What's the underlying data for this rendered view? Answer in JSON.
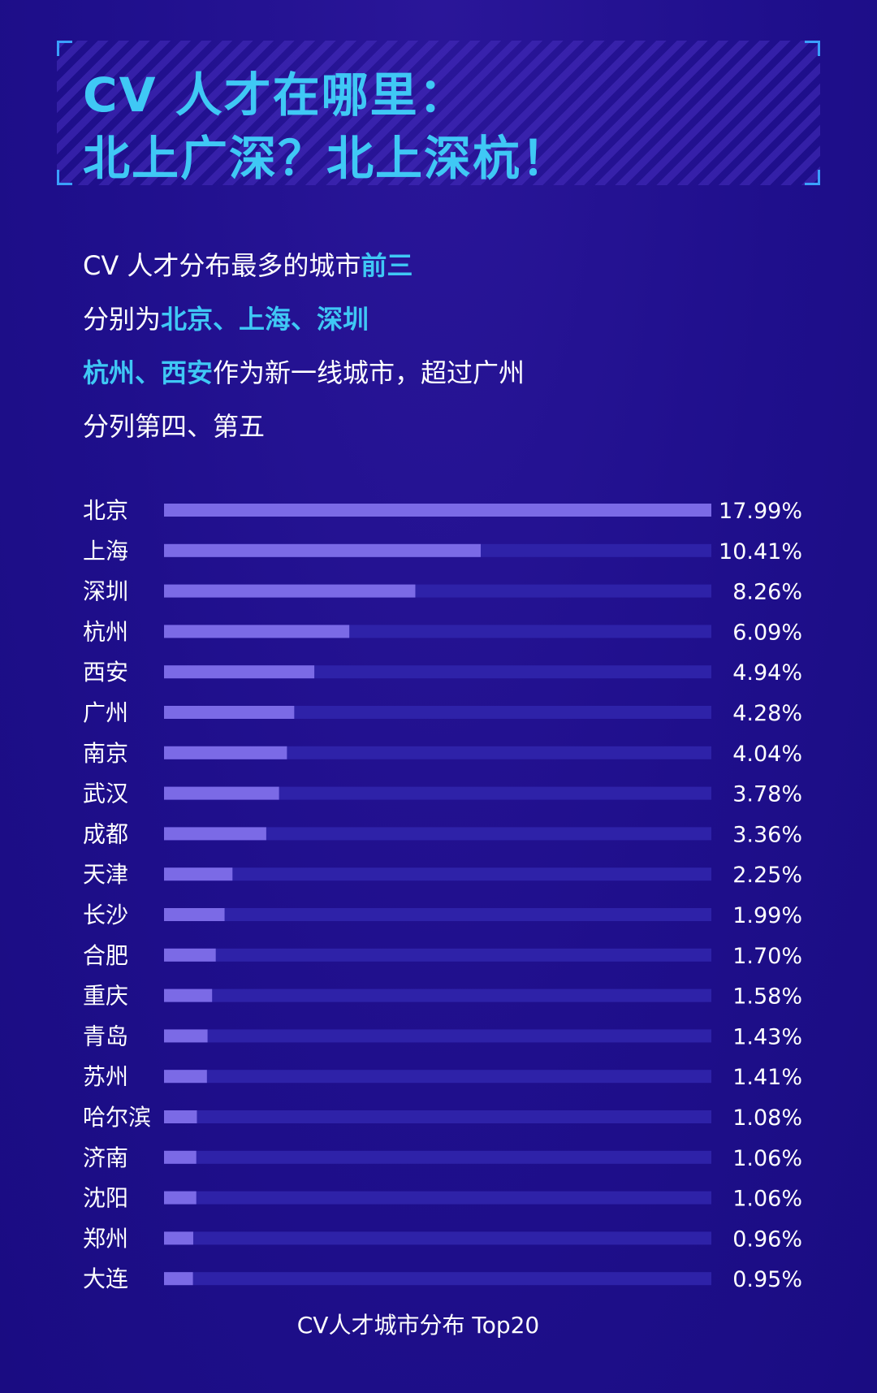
{
  "title": {
    "line1": "CV 人才在哪里：",
    "line2": "北上广深？北上深杭！"
  },
  "intro": [
    [
      {
        "t": "CV 人才分布最多的城市",
        "hl": false
      },
      {
        "t": "前三",
        "hl": true
      }
    ],
    [
      {
        "t": "分别为",
        "hl": false
      },
      {
        "t": "北京、上海、深圳",
        "hl": true
      }
    ],
    [
      {
        "t": "杭州、西安",
        "hl": true
      },
      {
        "t": "作为新一线城市，超过广州",
        "hl": false
      }
    ],
    [
      {
        "t": "分列第四、第五",
        "hl": false
      }
    ]
  ],
  "colors": {
    "background": "#1f0f8c",
    "accent_text": "#3fc8f5",
    "bar_fill": "#7b6ae6",
    "bar_track": "#2e22a8"
  },
  "chart_data": {
    "type": "bar",
    "orientation": "horizontal",
    "categories": [
      "北京",
      "上海",
      "深圳",
      "杭州",
      "西安",
      "广州",
      "南京",
      "武汉",
      "成都",
      "天津",
      "长沙",
      "合肥",
      "重庆",
      "青岛",
      "苏州",
      "哈尔滨",
      "济南",
      "沈阳",
      "郑州",
      "大连"
    ],
    "values": [
      17.99,
      10.41,
      8.26,
      6.09,
      4.94,
      4.28,
      4.04,
      3.78,
      3.36,
      2.25,
      1.99,
      1.7,
      1.58,
      1.43,
      1.41,
      1.08,
      1.06,
      1.06,
      0.96,
      0.95
    ],
    "value_labels": [
      "17.99%",
      "10.41%",
      "8.26%",
      "6.09%",
      "4.94%",
      "4.28%",
      "4.04%",
      "3.78%",
      "3.36%",
      "2.25%",
      "1.99%",
      "1.70%",
      "1.58%",
      "1.43%",
      "1.41%",
      "1.08%",
      "1.06%",
      "1.06%",
      "0.96%",
      "0.95%"
    ],
    "xlim": [
      0,
      17.99
    ],
    "grid": false,
    "legend": "none",
    "caption": "CV人才城市分布 Top20"
  }
}
